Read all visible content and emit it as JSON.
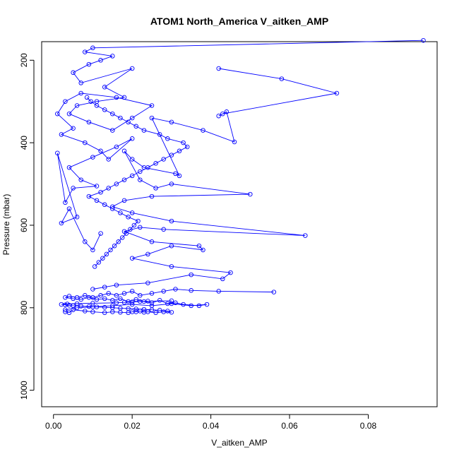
{
  "chart_data": {
    "type": "line",
    "title": "ATOM1 North_America V_aitken_AMP",
    "xlabel": "V_aitken_AMP",
    "ylabel": "Pressure (mbar)",
    "xlim": [
      -0.003,
      0.0975
    ],
    "ylim": [
      1040,
      155
    ],
    "y_reversed": true,
    "x_ticks": [
      0.0,
      0.02,
      0.04,
      0.06,
      0.08
    ],
    "x_tick_labels": [
      "0.00",
      "0.02",
      "0.04",
      "0.06",
      "0.08"
    ],
    "y_ticks": [
      200,
      400,
      600,
      800,
      1000
    ],
    "y_tick_labels": [
      "200",
      "400",
      "600",
      "800",
      "1000"
    ],
    "grid": false,
    "legend": "none",
    "colors": {
      "series": "#0000ff",
      "axis": "#000000"
    },
    "marker": "open-circle",
    "series": [
      {
        "x": [
          0.094,
          0.01,
          0.008,
          0.015,
          0.012,
          0.009,
          0.005,
          0.007,
          0.02,
          0.013,
          0.018,
          0.011,
          0.006,
          0.004,
          0.009,
          0.015,
          0.02,
          0.025,
          0.016,
          0.007,
          0.003,
          0.001,
          0.005,
          0.002,
          0.008,
          0.012,
          0.014,
          0.02,
          0.016,
          0.01,
          0.004,
          0.007,
          0.011,
          0.005,
          0.003,
          0.001,
          0.006,
          0.002,
          0.004,
          0.008,
          0.01,
          0.012
        ],
        "y": [
          152,
          170,
          180,
          190,
          200,
          210,
          230,
          255,
          220,
          265,
          290,
          300,
          310,
          330,
          350,
          370,
          340,
          310,
          290,
          280,
          300,
          330,
          365,
          380,
          400,
          420,
          440,
          390,
          410,
          435,
          460,
          490,
          505,
          510,
          545,
          425,
          580,
          595,
          560,
          640,
          660,
          620
        ]
      },
      {
        "x": [
          0.042,
          0.058,
          0.072,
          0.043,
          0.042,
          0.044,
          0.046,
          0.038,
          0.03,
          0.025,
          0.032,
          0.031,
          0.023,
          0.02,
          0.018,
          0.022,
          0.026,
          0.03,
          0.05,
          0.025,
          0.018,
          0.015,
          0.02,
          0.03,
          0.064,
          0.028,
          0.022,
          0.018,
          0.025,
          0.037,
          0.038,
          0.03,
          0.024,
          0.02,
          0.03,
          0.045,
          0.043,
          0.035,
          0.024,
          0.016,
          0.013,
          0.01
        ],
        "y": [
          220,
          245,
          280,
          330,
          335,
          325,
          398,
          370,
          350,
          340,
          480,
          475,
          460,
          440,
          420,
          490,
          510,
          500,
          525,
          530,
          540,
          555,
          570,
          590,
          625,
          610,
          605,
          615,
          640,
          650,
          660,
          650,
          670,
          680,
          700,
          715,
          730,
          720,
          740,
          745,
          750,
          755
        ]
      },
      {
        "x": [
          0.056,
          0.042,
          0.035,
          0.031,
          0.028,
          0.025,
          0.022,
          0.02,
          0.018,
          0.016,
          0.014,
          0.012,
          0.01,
          0.008,
          0.006,
          0.004,
          0.003,
          0.005,
          0.007,
          0.009,
          0.011,
          0.013,
          0.015,
          0.017,
          0.019,
          0.021,
          0.023,
          0.025,
          0.027,
          0.029,
          0.031,
          0.033,
          0.037,
          0.039,
          0.035,
          0.03,
          0.025,
          0.02,
          0.015,
          0.01,
          0.006,
          0.003
        ],
        "y": [
          762,
          760,
          758,
          755,
          760,
          765,
          770,
          760,
          765,
          770,
          765,
          770,
          775,
          770,
          775,
          772,
          775,
          778,
          780,
          775,
          780,
          778,
          782,
          778,
          785,
          780,
          785,
          788,
          782,
          790,
          788,
          792,
          795,
          792,
          795,
          790,
          795,
          792,
          795,
          798,
          800,
          805
        ]
      },
      {
        "x": [
          0.003,
          0.004,
          0.005,
          0.008,
          0.01,
          0.013,
          0.015,
          0.017,
          0.019,
          0.02,
          0.021,
          0.022,
          0.023,
          0.024,
          0.026,
          0.028,
          0.03,
          0.029,
          0.027,
          0.025,
          0.023,
          0.021,
          0.019,
          0.017,
          0.015,
          0.013,
          0.011,
          0.009,
          0.007,
          0.005,
          0.004,
          0.003,
          0.002,
          0.0035,
          0.006,
          0.01,
          0.016,
          0.018,
          0.02,
          0.022,
          0.024,
          0.03
        ],
        "y": [
          810,
          812,
          805,
          808,
          810,
          812,
          810,
          811,
          812,
          810,
          810,
          808,
          811,
          810,
          812,
          810,
          811,
          808,
          806,
          805,
          804,
          803,
          802,
          801,
          800,
          799,
          798,
          797,
          796,
          795,
          794,
          793,
          792,
          791,
          790,
          789,
          788,
          787,
          786,
          785,
          784,
          783
        ]
      },
      {
        "x": [
          0.0105,
          0.0115,
          0.0125,
          0.0135,
          0.0145,
          0.0155,
          0.0165,
          0.0175,
          0.0185,
          0.0195,
          0.0205,
          0.0215,
          0.019,
          0.017,
          0.015,
          0.013,
          0.011,
          0.009,
          0.012,
          0.014,
          0.016,
          0.018,
          0.02,
          0.022,
          0.024,
          0.026,
          0.028,
          0.03,
          0.032,
          0.034,
          0.033,
          0.029,
          0.027,
          0.023,
          0.021,
          0.019,
          0.017,
          0.015,
          0.013,
          0.011,
          0.0095,
          0.0085
        ],
        "y": [
          700,
          690,
          680,
          670,
          660,
          650,
          640,
          630,
          620,
          610,
          600,
          590,
          580,
          570,
          560,
          550,
          540,
          530,
          520,
          510,
          500,
          490,
          480,
          470,
          460,
          450,
          440,
          430,
          420,
          410,
          400,
          390,
          380,
          370,
          360,
          350,
          340,
          330,
          320,
          310,
          300,
          290
        ]
      }
    ]
  }
}
